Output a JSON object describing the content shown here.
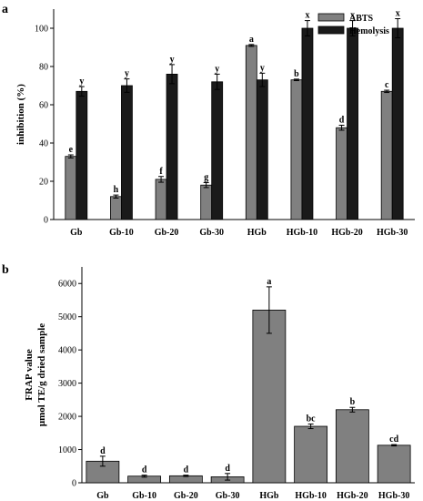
{
  "chart_data": [
    {
      "panel_label": "a",
      "type": "bar",
      "categories": [
        "Gb",
        "Gb-10",
        "Gb-20",
        "Gb-30",
        "HGb",
        "HGb-10",
        "HGb-20",
        "HGb-30"
      ],
      "ylabel": "inhibition (%)",
      "xlabel": "",
      "ylim": [
        0,
        110
      ],
      "yticks": [
        0,
        20,
        40,
        60,
        80,
        100
      ],
      "legend_position": "top-right",
      "grid": false,
      "series": [
        {
          "name": "ABTS",
          "color": "#808080",
          "values": [
            33,
            12,
            21,
            18,
            91,
            73,
            48,
            67
          ],
          "errors": [
            0.8,
            0.8,
            1.5,
            1.3,
            0.5,
            0.4,
            1.3,
            0.6
          ],
          "letters": [
            "e",
            "h",
            "f",
            "g",
            "a",
            "b",
            "d",
            "c"
          ]
        },
        {
          "name": "Hemolysis",
          "color": "#1a1a1a",
          "values": [
            67,
            70,
            76,
            72,
            73,
            100,
            100,
            100
          ],
          "errors": [
            2.5,
            3.5,
            5,
            4,
            3.5,
            4,
            4,
            5
          ],
          "letters": [
            "y",
            "y",
            "y",
            "y",
            "y",
            "x",
            "x",
            "x"
          ]
        }
      ]
    },
    {
      "panel_label": "b",
      "type": "bar",
      "categories": [
        "Gb",
        "Gb-10",
        "Gb-20",
        "Gb-30",
        "HGb",
        "HGb-10",
        "HGb-20",
        "HGb-30"
      ],
      "ylabel": "FRAP value",
      "ylabel2": "μmol TE/g dried sample",
      "xlabel": "",
      "ylim": [
        0,
        6500
      ],
      "yticks": [
        0,
        1000,
        2000,
        3000,
        4000,
        5000,
        6000
      ],
      "grid": false,
      "series": [
        {
          "color": "#808080",
          "values": [
            650,
            200,
            210,
            180,
            5200,
            1700,
            2200,
            1130
          ],
          "errors": [
            150,
            30,
            20,
            100,
            700,
            70,
            70,
            20
          ],
          "letters": [
            "d",
            "d",
            "d",
            "d",
            "a",
            "bc",
            "b",
            "cd"
          ]
        }
      ]
    }
  ]
}
